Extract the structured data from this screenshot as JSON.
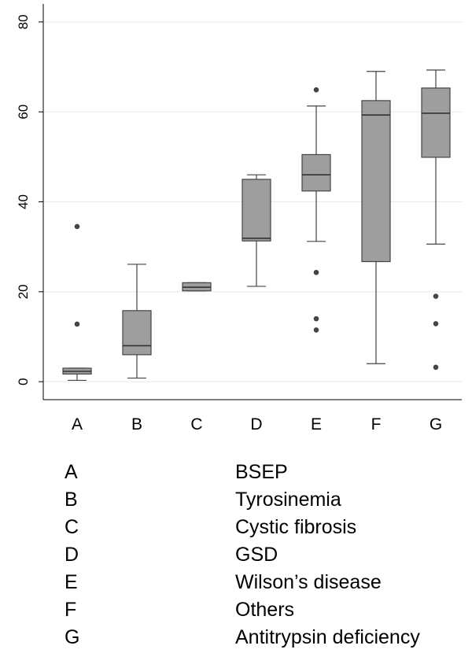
{
  "chart_data": {
    "type": "box",
    "title": "",
    "xlabel": "",
    "ylabel": "",
    "ylim": [
      -4,
      84
    ],
    "yticks": [
      0,
      20,
      40,
      60,
      80
    ],
    "grid": true,
    "box_color": "#9e9e9e",
    "categories": [
      "A",
      "B",
      "C",
      "D",
      "E",
      "F",
      "G"
    ],
    "boxes": [
      {
        "category": "A",
        "whisker_low": 0.3,
        "q1": 1.7,
        "median": 2.3,
        "q3": 3.0,
        "whisker_high": 3.0,
        "outliers": [
          12.8,
          34.5
        ]
      },
      {
        "category": "B",
        "whisker_low": 0.8,
        "q1": 6.0,
        "median": 8.0,
        "q3": 15.8,
        "whisker_high": 26.1,
        "outliers": []
      },
      {
        "category": "C",
        "whisker_low": 20.2,
        "q1": 20.2,
        "median": 21.0,
        "q3": 22.0,
        "whisker_high": 22.0,
        "outliers": []
      },
      {
        "category": "D",
        "whisker_low": 21.2,
        "q1": 31.3,
        "median": 31.9,
        "q3": 45.0,
        "whisker_high": 46.0,
        "outliers": []
      },
      {
        "category": "E",
        "whisker_low": 31.2,
        "q1": 42.4,
        "median": 46.0,
        "q3": 50.5,
        "whisker_high": 61.3,
        "outliers": [
          64.9,
          24.3,
          14.0,
          11.5
        ]
      },
      {
        "category": "F",
        "whisker_low": 4.0,
        "q1": 26.7,
        "median": 59.3,
        "q3": 62.5,
        "whisker_high": 69.0,
        "outliers": []
      },
      {
        "category": "G",
        "whisker_low": 30.6,
        "q1": 49.9,
        "median": 59.7,
        "q3": 65.3,
        "whisker_high": 69.3,
        "outliers": [
          19.0,
          12.9,
          3.2
        ]
      }
    ]
  },
  "legend": [
    {
      "code": "A",
      "label": "BSEP"
    },
    {
      "code": "B",
      "label": "Tyrosinemia"
    },
    {
      "code": "C",
      "label": "Cystic fibrosis"
    },
    {
      "code": "D",
      "label": "GSD"
    },
    {
      "code": "E",
      "label": "Wilson’s disease"
    },
    {
      "code": "F",
      "label": "Others"
    },
    {
      "code": "G",
      "label": "Antitrypsin deficiency"
    }
  ]
}
